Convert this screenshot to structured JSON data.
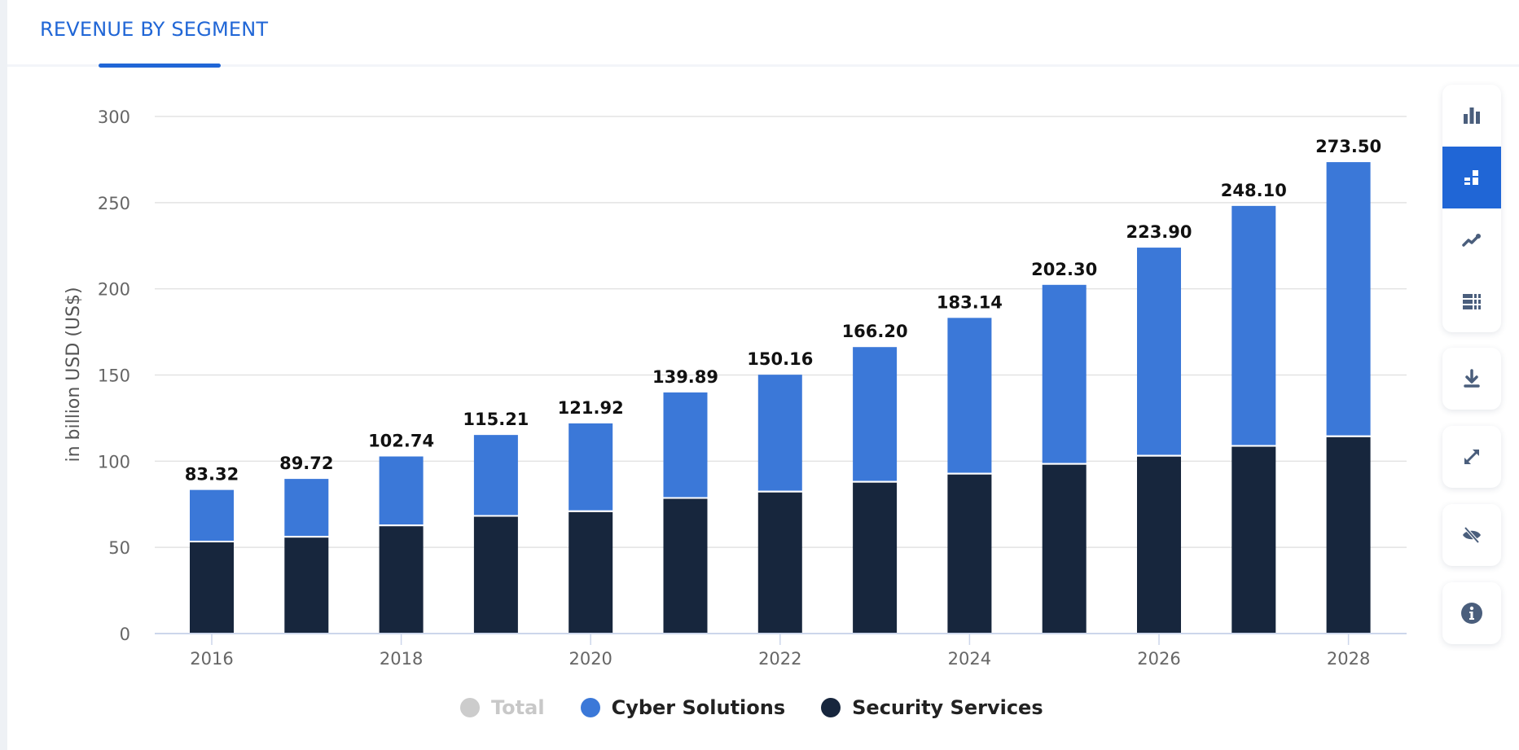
{
  "header": {
    "tab_title": "REVENUE BY SEGMENT"
  },
  "colors": {
    "accent": "#2066d6",
    "cyber_solutions": "#3b78d8",
    "security_services": "#17263d",
    "total_disabled": "#cccccc",
    "icon": "#4a5e7c"
  },
  "toolbar": {
    "view_buttons": [
      {
        "icon": "bar-chart-icon",
        "label": "Bar chart",
        "active": false
      },
      {
        "icon": "stacked-bar-icon",
        "label": "Stacked bar chart",
        "active": true
      },
      {
        "icon": "line-chart-icon",
        "label": "Line chart",
        "active": false
      },
      {
        "icon": "table-icon",
        "label": "Table",
        "active": false
      }
    ],
    "action_buttons": [
      {
        "icon": "download-icon",
        "label": "Download"
      },
      {
        "icon": "fullscreen-icon",
        "label": "Fullscreen"
      },
      {
        "icon": "hide-icon",
        "label": "Hide"
      },
      {
        "icon": "info-icon",
        "label": "Info"
      }
    ]
  },
  "chart_data": {
    "type": "bar",
    "stacked": true,
    "title": "",
    "xlabel": "",
    "ylabel": "in billion USD (US$)",
    "ylim": [
      0,
      300
    ],
    "yticks": [
      0,
      50,
      100,
      150,
      200,
      250,
      300
    ],
    "grid": true,
    "categories": [
      "2016",
      "2017",
      "2018",
      "2019",
      "2020",
      "2021",
      "2022",
      "2023",
      "2024",
      "2025",
      "2026",
      "2027",
      "2028"
    ],
    "xtick_labels": [
      "2016",
      "",
      "2018",
      "",
      "2020",
      "",
      "2022",
      "",
      "2024",
      "",
      "2026",
      "",
      "2028"
    ],
    "totals": [
      83.32,
      89.72,
      102.74,
      115.21,
      121.92,
      139.89,
      150.16,
      166.2,
      183.14,
      202.3,
      223.9,
      248.1,
      273.5
    ],
    "total_labels": [
      "83.32",
      "89.72",
      "102.74",
      "115.21",
      "121.92",
      "139.89",
      "150.16",
      "166.20",
      "183.14",
      "202.30",
      "223.90",
      "248.10",
      "273.50"
    ],
    "series": [
      {
        "name": "Security Services",
        "color": "#17263d",
        "values": [
          52.9,
          55.7,
          62.3,
          67.8,
          70.5,
          78.2,
          81.9,
          87.6,
          92.3,
          98.0,
          102.7,
          108.4,
          114.0
        ]
      },
      {
        "name": "Cyber Solutions",
        "color": "#3b78d8",
        "values": [
          30.42,
          34.02,
          40.44,
          47.41,
          51.42,
          61.69,
          68.26,
          78.6,
          90.84,
          104.3,
          121.2,
          139.7,
          159.5
        ]
      }
    ],
    "legend": {
      "position": "bottom-center",
      "items": [
        {
          "name": "Total",
          "color": "#cccccc",
          "hidden": true
        },
        {
          "name": "Cyber Solutions",
          "color": "#3b78d8",
          "hidden": false
        },
        {
          "name": "Security Services",
          "color": "#17263d",
          "hidden": false
        }
      ]
    }
  }
}
